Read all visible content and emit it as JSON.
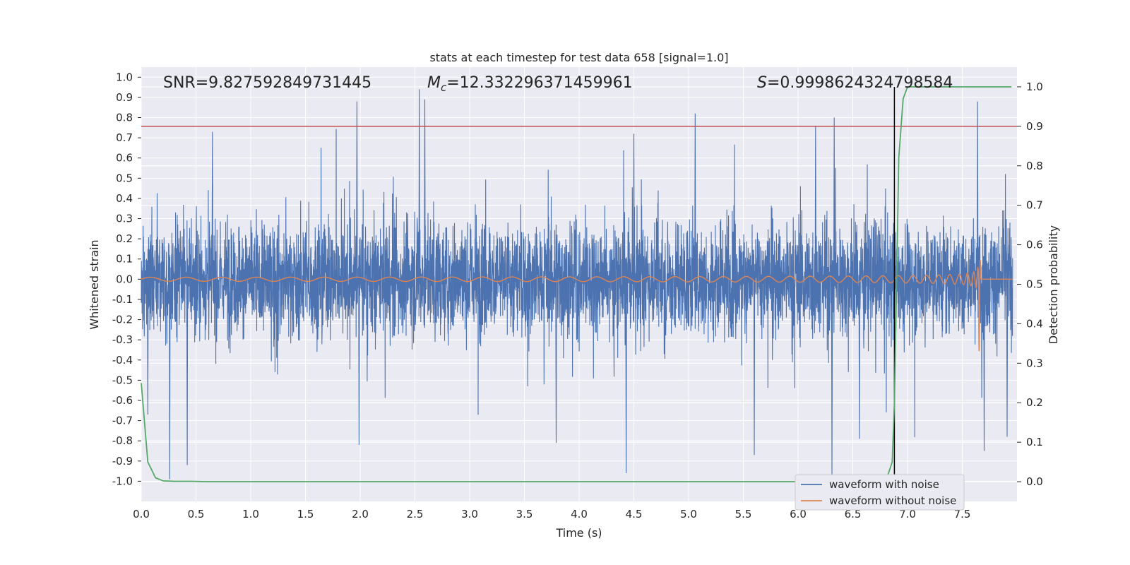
{
  "chart_data": {
    "type": "line",
    "title": "stats at each timestep for test data 658 [signal=1.0]",
    "xlabel": "Time (s)",
    "ylabel": "Whitened strain",
    "y2label": "Detection probability",
    "xlim": [
      0.0,
      8.0
    ],
    "ylim": [
      -1.1,
      1.05
    ],
    "y2lim": [
      -0.05,
      1.05
    ],
    "xticks": [
      "0.0",
      "0.5",
      "1.0",
      "1.5",
      "2.0",
      "2.5",
      "3.0",
      "3.5",
      "4.0",
      "4.5",
      "5.0",
      "5.5",
      "6.0",
      "6.5",
      "7.0",
      "7.5"
    ],
    "xtick_values": [
      0.0,
      0.5,
      1.0,
      1.5,
      2.0,
      2.5,
      3.0,
      3.5,
      4.0,
      4.5,
      5.0,
      5.5,
      6.0,
      6.5,
      7.0,
      7.5
    ],
    "yticks": [
      "1.0",
      "0.9",
      "0.8",
      "0.7",
      "0.6",
      "0.5",
      "0.4",
      "0.3",
      "0.2",
      "0.1",
      "0.0",
      "-0.1",
      "-0.2",
      "-0.3",
      "-0.4",
      "-0.5",
      "-0.6",
      "-0.7",
      "-0.8",
      "-0.9",
      "-1.0"
    ],
    "ytick_values": [
      1.0,
      0.9,
      0.8,
      0.7,
      0.6,
      0.5,
      0.4,
      0.3,
      0.2,
      0.1,
      0.0,
      -0.1,
      -0.2,
      -0.3,
      -0.4,
      -0.5,
      -0.6,
      -0.7,
      -0.8,
      -0.9,
      -1.0
    ],
    "y2ticks": [
      "1.0",
      "0.9",
      "0.8",
      "0.7",
      "0.6",
      "0.5",
      "0.4",
      "0.3",
      "0.2",
      "0.1",
      "0.0"
    ],
    "y2tick_values": [
      1.0,
      0.9,
      0.8,
      0.7,
      0.6,
      0.5,
      0.4,
      0.3,
      0.2,
      0.1,
      0.0
    ],
    "annotations": {
      "snr": "SNR=9.827592849731445",
      "mc_symbol": "M",
      "mc_sub": "c",
      "mc_value": "=12.332296371459961",
      "s_symbol": "S",
      "s_value": "=0.9998624324798584"
    },
    "threshold": {
      "axis": "right",
      "value": 0.9,
      "color": "#c44e52"
    },
    "event_time": 6.88,
    "noise_series": {
      "name": "waveform with noise",
      "color": "#4c72b0",
      "peaks": [
        {
          "t": 0.26,
          "v": -0.99
        },
        {
          "t": 0.42,
          "v": -0.92
        },
        {
          "t": 0.06,
          "v": -0.67
        },
        {
          "t": 1.97,
          "v": 0.88
        },
        {
          "t": 2.54,
          "v": 0.94
        },
        {
          "t": 2.59,
          "v": 0.89
        },
        {
          "t": 1.99,
          "v": -0.82
        },
        {
          "t": 4.43,
          "v": -0.96
        },
        {
          "t": 4.5,
          "v": 0.72
        },
        {
          "t": 5.06,
          "v": 0.82
        },
        {
          "t": 6.31,
          "v": -0.98
        },
        {
          "t": 6.33,
          "v": 0.8
        },
        {
          "t": 6.56,
          "v": -0.79
        },
        {
          "t": 6.16,
          "v": 0.76
        },
        {
          "t": 7.64,
          "v": 0.88
        },
        {
          "t": 7.7,
          "v": -0.85
        },
        {
          "t": 3.79,
          "v": -0.81
        },
        {
          "t": 5.6,
          "v": -0.87
        },
        {
          "t": 0.65,
          "v": 0.73
        },
        {
          "t": 7.91,
          "v": -0.78
        }
      ]
    },
    "clean_series": {
      "name": "waveform without noise",
      "color": "#dd8452",
      "start_amplitude": 0.01,
      "peak_time": 7.65,
      "peak_amplitude": 0.45,
      "end_time": 7.67,
      "start_frequency": 3.0,
      "end_frequency": 40.0
    },
    "probability_series": {
      "name": "detection probability",
      "color": "#55a868",
      "points": [
        [
          0.0,
          0.25
        ],
        [
          0.06,
          0.05
        ],
        [
          0.13,
          0.01
        ],
        [
          0.2,
          0.002
        ],
        [
          0.3,
          0.001
        ],
        [
          0.45,
          0.001
        ],
        [
          0.6,
          0.0
        ],
        [
          1.0,
          0.0
        ],
        [
          3.0,
          0.0
        ],
        [
          5.0,
          0.0
        ],
        [
          6.8,
          0.0
        ],
        [
          6.86,
          0.05
        ],
        [
          6.88,
          0.2
        ],
        [
          6.9,
          0.5
        ],
        [
          6.92,
          0.82
        ],
        [
          6.96,
          0.97
        ],
        [
          7.0,
          1.0
        ],
        [
          7.5,
          1.0
        ],
        [
          7.95,
          1.0
        ]
      ]
    },
    "legend": {
      "placement": "lower-right",
      "entries": [
        {
          "label": "waveform with noise",
          "color": "#4c72b0"
        },
        {
          "label": "waveform without noise",
          "color": "#dd8452"
        }
      ]
    },
    "background_color": "#eaeaf2",
    "grid": true
  }
}
